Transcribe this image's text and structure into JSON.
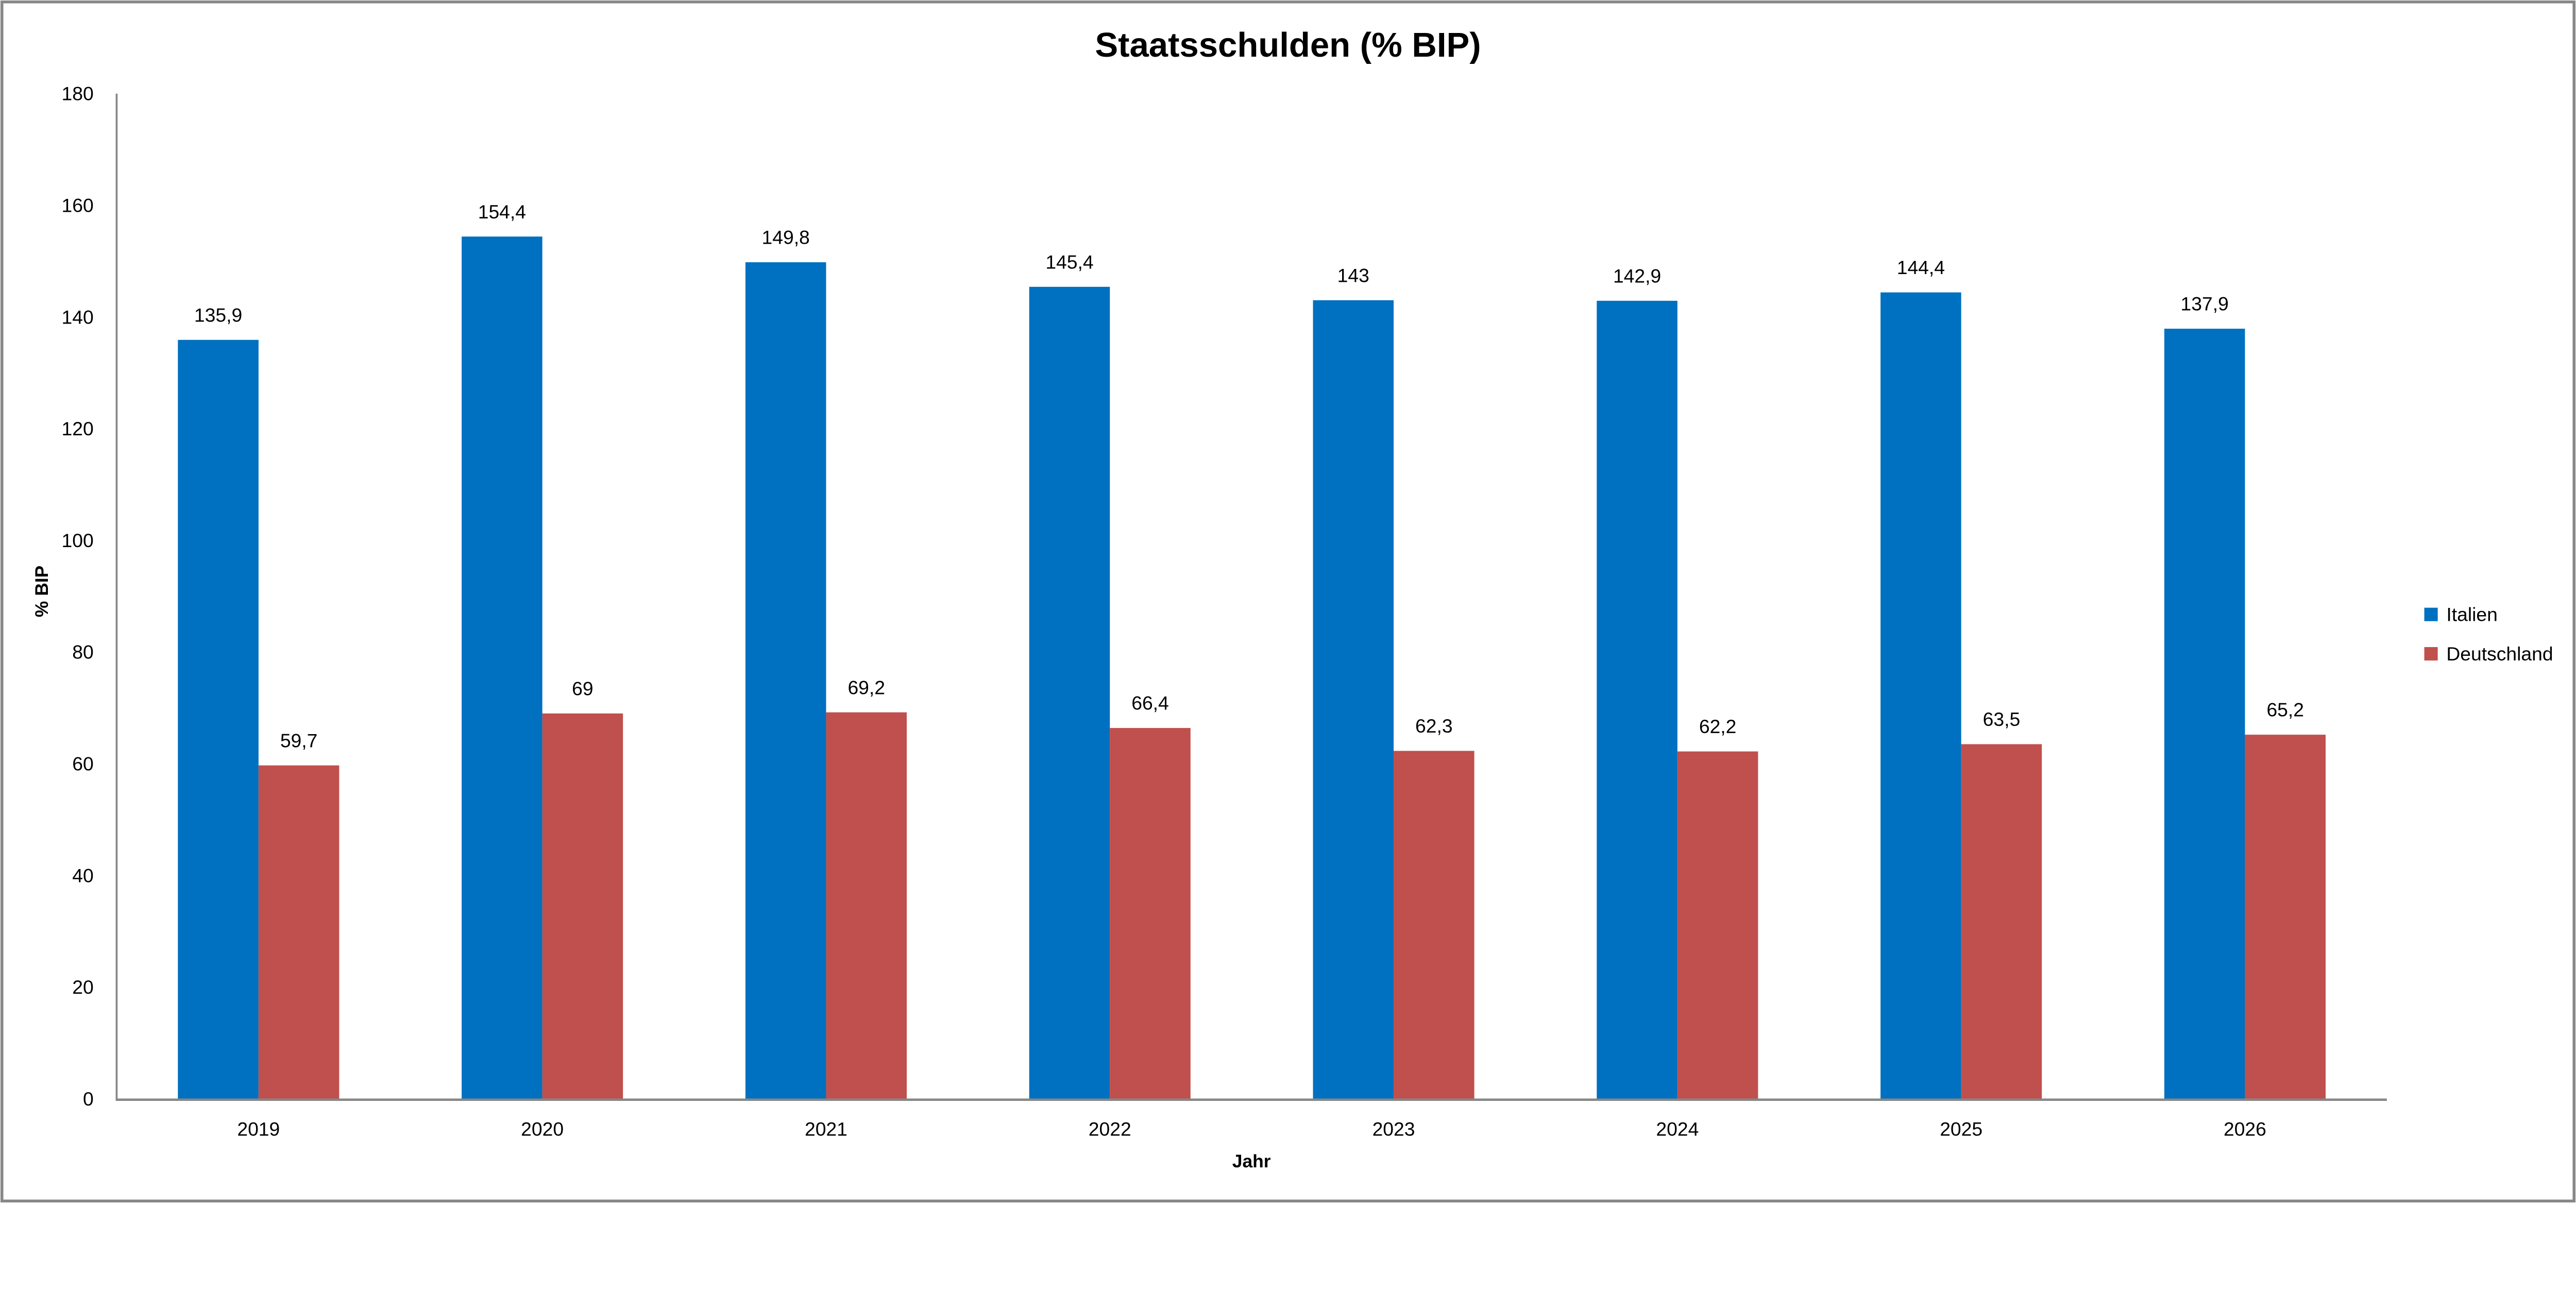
{
  "chart_data": {
    "type": "bar",
    "title": "Staatsschulden (% BIP)",
    "xlabel": "Jahr",
    "ylabel": "% BIP",
    "ylim": [
      0,
      180
    ],
    "yticks": [
      0,
      20,
      40,
      60,
      80,
      100,
      120,
      140,
      160,
      180
    ],
    "grid": false,
    "legend_position": "right",
    "categories": [
      "2019",
      "2020",
      "2021",
      "2022",
      "2023",
      "2024",
      "2025",
      "2026"
    ],
    "series": [
      {
        "name": "Italien",
        "color": "#0070C0",
        "values": [
          135.9,
          154.4,
          149.8,
          145.4,
          143,
          142.9,
          144.4,
          137.9
        ],
        "labels": [
          "135,9",
          "154,4",
          "149,8",
          "145,4",
          "143",
          "142,9",
          "144,4",
          "137,9"
        ]
      },
      {
        "name": "Deutschland",
        "color": "#C0504D",
        "values": [
          59.7,
          69,
          69.2,
          66.4,
          62.3,
          62.2,
          63.5,
          65.2
        ],
        "labels": [
          "59,7",
          "69",
          "69,2",
          "66,4",
          "62,3",
          "62,2",
          "63,5",
          "65,2"
        ]
      }
    ]
  }
}
